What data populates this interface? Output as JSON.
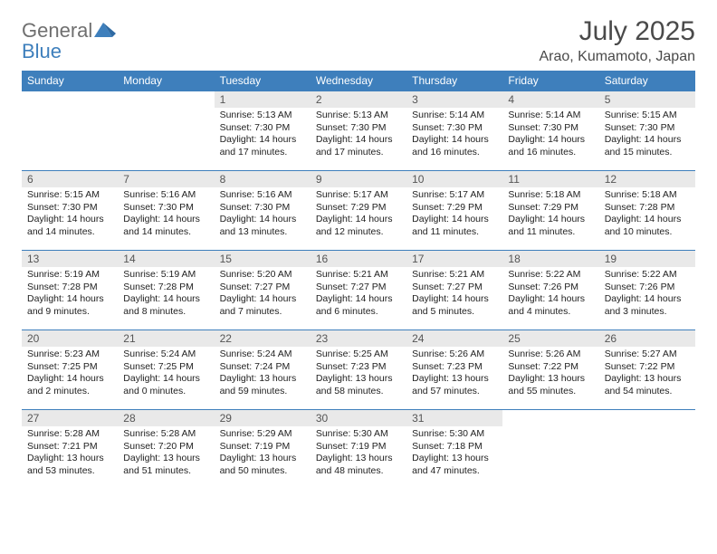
{
  "brand": {
    "word1": "General",
    "word2": "Blue"
  },
  "title": "July 2025",
  "location": "Arao, Kumamoto, Japan",
  "colors": {
    "header_bg": "#3e7fbc",
    "header_fg": "#ffffff",
    "daynum_bg": "#e9e9e9",
    "rule": "#3e7fbc",
    "logo_gray": "#6f6f6f",
    "logo_blue": "#3e7fbc"
  },
  "weekdays": [
    "Sunday",
    "Monday",
    "Tuesday",
    "Wednesday",
    "Thursday",
    "Friday",
    "Saturday"
  ],
  "weeks": [
    [
      null,
      null,
      {
        "n": "1",
        "sr": "5:13 AM",
        "ss": "7:30 PM",
        "dl": "14 hours and 17 minutes."
      },
      {
        "n": "2",
        "sr": "5:13 AM",
        "ss": "7:30 PM",
        "dl": "14 hours and 17 minutes."
      },
      {
        "n": "3",
        "sr": "5:14 AM",
        "ss": "7:30 PM",
        "dl": "14 hours and 16 minutes."
      },
      {
        "n": "4",
        "sr": "5:14 AM",
        "ss": "7:30 PM",
        "dl": "14 hours and 16 minutes."
      },
      {
        "n": "5",
        "sr": "5:15 AM",
        "ss": "7:30 PM",
        "dl": "14 hours and 15 minutes."
      }
    ],
    [
      {
        "n": "6",
        "sr": "5:15 AM",
        "ss": "7:30 PM",
        "dl": "14 hours and 14 minutes."
      },
      {
        "n": "7",
        "sr": "5:16 AM",
        "ss": "7:30 PM",
        "dl": "14 hours and 14 minutes."
      },
      {
        "n": "8",
        "sr": "5:16 AM",
        "ss": "7:30 PM",
        "dl": "14 hours and 13 minutes."
      },
      {
        "n": "9",
        "sr": "5:17 AM",
        "ss": "7:29 PM",
        "dl": "14 hours and 12 minutes."
      },
      {
        "n": "10",
        "sr": "5:17 AM",
        "ss": "7:29 PM",
        "dl": "14 hours and 11 minutes."
      },
      {
        "n": "11",
        "sr": "5:18 AM",
        "ss": "7:29 PM",
        "dl": "14 hours and 11 minutes."
      },
      {
        "n": "12",
        "sr": "5:18 AM",
        "ss": "7:28 PM",
        "dl": "14 hours and 10 minutes."
      }
    ],
    [
      {
        "n": "13",
        "sr": "5:19 AM",
        "ss": "7:28 PM",
        "dl": "14 hours and 9 minutes."
      },
      {
        "n": "14",
        "sr": "5:19 AM",
        "ss": "7:28 PM",
        "dl": "14 hours and 8 minutes."
      },
      {
        "n": "15",
        "sr": "5:20 AM",
        "ss": "7:27 PM",
        "dl": "14 hours and 7 minutes."
      },
      {
        "n": "16",
        "sr": "5:21 AM",
        "ss": "7:27 PM",
        "dl": "14 hours and 6 minutes."
      },
      {
        "n": "17",
        "sr": "5:21 AM",
        "ss": "7:27 PM",
        "dl": "14 hours and 5 minutes."
      },
      {
        "n": "18",
        "sr": "5:22 AM",
        "ss": "7:26 PM",
        "dl": "14 hours and 4 minutes."
      },
      {
        "n": "19",
        "sr": "5:22 AM",
        "ss": "7:26 PM",
        "dl": "14 hours and 3 minutes."
      }
    ],
    [
      {
        "n": "20",
        "sr": "5:23 AM",
        "ss": "7:25 PM",
        "dl": "14 hours and 2 minutes."
      },
      {
        "n": "21",
        "sr": "5:24 AM",
        "ss": "7:25 PM",
        "dl": "14 hours and 0 minutes."
      },
      {
        "n": "22",
        "sr": "5:24 AM",
        "ss": "7:24 PM",
        "dl": "13 hours and 59 minutes."
      },
      {
        "n": "23",
        "sr": "5:25 AM",
        "ss": "7:23 PM",
        "dl": "13 hours and 58 minutes."
      },
      {
        "n": "24",
        "sr": "5:26 AM",
        "ss": "7:23 PM",
        "dl": "13 hours and 57 minutes."
      },
      {
        "n": "25",
        "sr": "5:26 AM",
        "ss": "7:22 PM",
        "dl": "13 hours and 55 minutes."
      },
      {
        "n": "26",
        "sr": "5:27 AM",
        "ss": "7:22 PM",
        "dl": "13 hours and 54 minutes."
      }
    ],
    [
      {
        "n": "27",
        "sr": "5:28 AM",
        "ss": "7:21 PM",
        "dl": "13 hours and 53 minutes."
      },
      {
        "n": "28",
        "sr": "5:28 AM",
        "ss": "7:20 PM",
        "dl": "13 hours and 51 minutes."
      },
      {
        "n": "29",
        "sr": "5:29 AM",
        "ss": "7:19 PM",
        "dl": "13 hours and 50 minutes."
      },
      {
        "n": "30",
        "sr": "5:30 AM",
        "ss": "7:19 PM",
        "dl": "13 hours and 48 minutes."
      },
      {
        "n": "31",
        "sr": "5:30 AM",
        "ss": "7:18 PM",
        "dl": "13 hours and 47 minutes."
      },
      null,
      null
    ]
  ],
  "labels": {
    "sunrise": "Sunrise:",
    "sunset": "Sunset:",
    "daylight": "Daylight:"
  }
}
